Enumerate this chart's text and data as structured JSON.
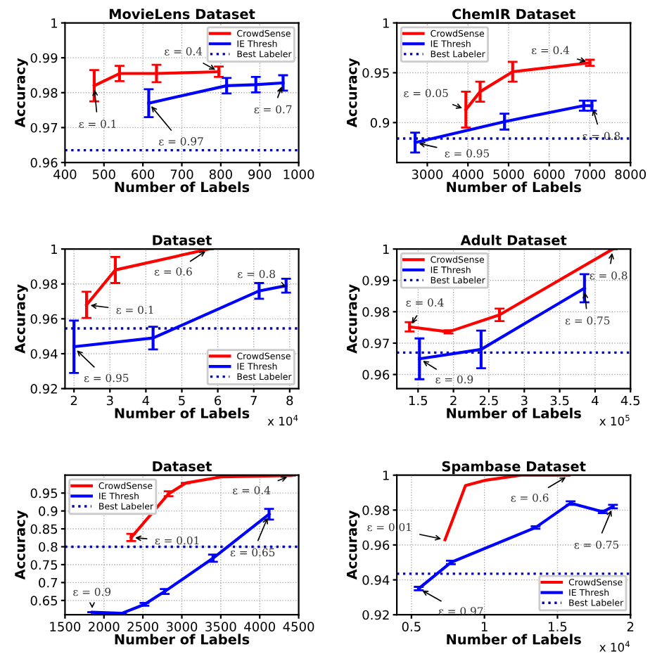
{
  "chart_data": [
    {
      "type": "line",
      "title": "MovieLens Dataset",
      "xlabel": "Number of Labels",
      "ylabel": "Accuracy",
      "xlim": [
        400,
        1000
      ],
      "xticks": [
        400,
        500,
        600,
        700,
        800,
        900,
        1000
      ],
      "ylim": [
        0.96,
        1
      ],
      "yticks": [
        0.96,
        0.97,
        0.98,
        0.99,
        1
      ],
      "grid": true,
      "legend": "top right",
      "series": [
        {
          "name": "CrowdSense",
          "color": "#ff0000",
          "x": [
            475,
            540,
            635,
            795
          ],
          "values": [
            0.982,
            0.9855,
            0.9855,
            0.986
          ],
          "errors": [
            0.0045,
            0.0022,
            0.0025,
            0.0015
          ]
        },
        {
          "name": "IE Thresh",
          "color": "#0000ff",
          "x": [
            615,
            815,
            890,
            960
          ],
          "values": [
            0.977,
            0.982,
            0.9823,
            0.9828
          ],
          "errors": [
            0.004,
            0.0022,
            0.0022,
            0.0022
          ]
        }
      ],
      "ref_lines": [
        {
          "axis": "y",
          "value": 0.9635,
          "label": "Best Labeler",
          "color": "#0000aa",
          "line_style": "dotted"
        }
      ],
      "annotations": [
        {
          "text": "ε = 0.1",
          "x": 475,
          "y": 0.982
        },
        {
          "text": "ε = 0.4",
          "x": 795,
          "y": 0.986
        },
        {
          "text": "ε = 0.97",
          "x": 615,
          "y": 0.977
        },
        {
          "text": "ε = 0.7",
          "x": 960,
          "y": 0.9828
        }
      ]
    },
    {
      "type": "line",
      "title": "ChemIR Dataset",
      "xlabel": "Number of Labels",
      "ylabel": "Accuracy",
      "xlim": [
        2250,
        8000
      ],
      "xticks": [
        3000,
        4000,
        5000,
        6000,
        7000,
        8000
      ],
      "ylim": [
        0.86,
        1
      ],
      "yticks": [
        0.9,
        0.95,
        1
      ],
      "grid": true,
      "legend": "top left",
      "series": [
        {
          "name": "CrowdSense",
          "color": "#ff0000",
          "x": [
            3950,
            4300,
            5100,
            7000
          ],
          "values": [
            0.913,
            0.931,
            0.951,
            0.96
          ],
          "errors": [
            0.018,
            0.01,
            0.01,
            0.003
          ]
        },
        {
          "name": "IE Thresh",
          "color": "#0000ff",
          "x": [
            2700,
            4900,
            6850,
            7050
          ],
          "values": [
            0.88,
            0.901,
            0.917,
            0.917
          ],
          "errors": [
            0.01,
            0.008,
            0.005,
            0.005
          ]
        }
      ],
      "ref_lines": [
        {
          "axis": "y",
          "value": 0.884,
          "label": "Best Labeler",
          "color": "#0000aa",
          "line_style": "dotted"
        }
      ],
      "annotations": [
        {
          "text": "ε = 0.05",
          "x": 3950,
          "y": 0.913
        },
        {
          "text": "ε = 0.4",
          "x": 7000,
          "y": 0.96
        },
        {
          "text": "ε = 0.95",
          "x": 2700,
          "y": 0.88
        },
        {
          "text": "ε = 0.8",
          "x": 7050,
          "y": 0.917
        }
      ]
    },
    {
      "type": "line",
      "title": "Dataset",
      "xlabel": "Number of Labels",
      "ylabel": "Accuracy",
      "xlim": [
        1.75,
        8.25
      ],
      "xticks": [
        2,
        3,
        4,
        5,
        6,
        7,
        8
      ],
      "ylim": [
        0.92,
        1
      ],
      "yticks": [
        0.92,
        0.94,
        0.96,
        0.98,
        1
      ],
      "grid": true,
      "legend": "bottom right",
      "series": [
        {
          "name": "CrowdSense",
          "color": "#ff0000",
          "x": [
            2.35,
            3.15,
            5.75
          ],
          "values": [
            0.968,
            0.988,
            1.0
          ],
          "errors": [
            0.0075,
            0.0075,
            null
          ]
        },
        {
          "name": "IE Thresh",
          "color": "#0000ff",
          "x": [
            2.0,
            4.2,
            7.15,
            7.9
          ],
          "values": [
            0.944,
            0.949,
            0.976,
            0.979
          ],
          "errors": [
            0.015,
            0.0065,
            0.0045,
            0.004
          ]
        }
      ],
      "ref_lines": [
        {
          "axis": "y",
          "value": 0.9545,
          "label": "Best Labeler",
          "color": "#0000aa",
          "line_style": "dotted"
        }
      ],
      "annotations": [
        {
          "text": "ε = 0.1",
          "x": 2.35,
          "y": 0.968
        },
        {
          "text": "ε = 0.6",
          "x": 5.75,
          "y": 1.0
        },
        {
          "text": "ε = 0.95",
          "x": 2.0,
          "y": 0.9435
        },
        {
          "text": "ε = 0.8",
          "x": 7.9,
          "y": 0.9785
        },
        "x 10$^{4}$"
      ]
    },
    {
      "type": "line",
      "title": "Adult Dataset",
      "xlabel": "Number of Labels",
      "ylabel": "Accuracy",
      "xlim": [
        1.2,
        4.5
      ],
      "xticks": [
        1.5,
        2,
        2.5,
        3,
        3.5,
        4,
        4.5
      ],
      "ylim": [
        0.9555,
        1
      ],
      "yticks": [
        0.96,
        0.97,
        0.98,
        0.99,
        1
      ],
      "grid": true,
      "legend": "top left",
      "series": [
        {
          "name": "CrowdSense",
          "color": "#ff0000",
          "x": [
            1.38,
            1.93,
            2.65,
            4.25
          ],
          "values": [
            0.9752,
            0.9736,
            0.979,
            1.0
          ],
          "errors": [
            0.0015,
            0.0005,
            0.002,
            null
          ]
        },
        {
          "name": "IE Thresh",
          "color": "#0000ff",
          "x": [
            1.52,
            2.39,
            3.85
          ],
          "values": [
            0.965,
            0.968,
            0.9875
          ],
          "errors": [
            0.0065,
            0.006,
            0.0045
          ]
        }
      ],
      "ref_lines": [
        {
          "axis": "y",
          "value": 0.967,
          "label": "Best Labeler",
          "color": "#0000aa",
          "line_style": "dotted"
        }
      ],
      "annotations": [
        {
          "text": "ε = 0.4",
          "x": 1.38,
          "y": 0.9752
        },
        {
          "text": "ε = 0.8",
          "x": 4.25,
          "y": 1.0
        },
        {
          "text": "ε = 0.9",
          "x": 1.52,
          "y": 0.965
        },
        {
          "text": "ε = 0.75",
          "x": 3.85,
          "y": 0.9875
        },
        "x 10$^{5}$"
      ]
    },
    {
      "type": "line",
      "title": "Dataset",
      "xlabel": "Number of Labels",
      "ylabel": "Accuracy",
      "xlim": [
        1500,
        4500
      ],
      "xticks": [
        1500,
        2000,
        2500,
        3000,
        3500,
        4000,
        4500
      ],
      "ylim": [
        0.61,
        1.0
      ],
      "yticks": [
        0.65,
        0.7,
        0.75,
        0.8,
        0.85,
        0.9,
        0.95
      ],
      "grid": true,
      "legend": "top left",
      "series": [
        {
          "name": "CrowdSense",
          "color": "#ff0000",
          "x": [
            2350,
            2830,
            3050,
            3500,
            4400
          ],
          "values": [
            0.826,
            0.948,
            0.978,
            0.995,
            0.999
          ],
          "errors": [
            0.01,
            0.007,
            null,
            null,
            null
          ]
        },
        {
          "name": "IE Thresh",
          "color": "#0000ff",
          "x": [
            1850,
            2230,
            2520,
            2780,
            3400,
            4120
          ],
          "values": [
            0.617,
            0.614,
            0.639,
            0.675,
            0.768,
            0.891
          ],
          "errors": [
            null,
            null,
            0.004,
            0.007,
            0.01,
            0.015
          ]
        }
      ],
      "ref_lines": [
        {
          "axis": "y",
          "value": 0.8,
          "label": "Best Labeler",
          "color": "#0000aa",
          "line_style": "dotted"
        }
      ],
      "annotations": [
        {
          "text": "ε = 0.01",
          "x": 2350,
          "y": 0.826
        },
        {
          "text": "ε = 0.4",
          "x": 4400,
          "y": 0.999
        },
        {
          "text": "ε = 0.9",
          "x": 1850,
          "y": 0.617
        },
        {
          "text": "ε = 0.65",
          "x": 4120,
          "y": 0.891
        }
      ]
    },
    {
      "type": "line",
      "title": "Spambase Dataset",
      "xlabel": "Number of Labels",
      "ylabel": "Accuracy",
      "xlim": [
        0.4,
        2
      ],
      "xticks": [
        0.5,
        1,
        1.5,
        2
      ],
      "ylim": [
        0.92,
        1
      ],
      "yticks": [
        0.92,
        0.94,
        0.96,
        0.98,
        1
      ],
      "grid": true,
      "legend": "bottom right",
      "series": [
        {
          "name": "CrowdSense",
          "color": "#ff0000",
          "x": [
            0.73,
            0.78,
            0.87,
            1.0,
            1.25,
            1.58
          ],
          "values": [
            0.963,
            0.974,
            0.994,
            0.997,
            1.0,
            1.0
          ]
        },
        {
          "name": "IE Thresh",
          "color": "#0000ff",
          "x": [
            0.55,
            0.77,
            1.35,
            1.59,
            1.81,
            1.88
          ],
          "values": [
            0.935,
            0.95,
            0.97,
            0.984,
            0.979,
            0.982
          ],
          "errors": [
            0.001,
            0.001,
            0.0007,
            0.001,
            0.0007,
            0.001
          ]
        }
      ],
      "ref_lines": [
        {
          "axis": "y",
          "value": 0.9435,
          "label": "Best Labeler",
          "color": "#0000aa",
          "line_style": "dotted"
        }
      ],
      "annotations": [
        {
          "text": "ε = 0.01",
          "x": 0.73,
          "y": 0.963
        },
        {
          "text": "ε = 0.6",
          "x": 1.58,
          "y": 1.0
        },
        {
          "text": "ε = 0.97",
          "x": 0.55,
          "y": 0.935
        },
        {
          "text": "ε = 0.75",
          "x": 1.88,
          "y": 0.982
        },
        "x 10$^{4}$"
      ]
    }
  ]
}
